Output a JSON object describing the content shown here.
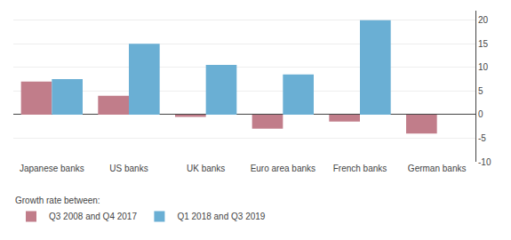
{
  "chart_data": {
    "type": "bar",
    "categories": [
      "Japanese banks",
      "US banks",
      "UK banks",
      "Euro area banks",
      "French banks",
      "German banks"
    ],
    "series": [
      {
        "name": "Q3 2008 and Q4 2017",
        "color": "#c17d8a",
        "values": [
          7.0,
          4.0,
          -0.5,
          -3.0,
          -1.5,
          -4.0
        ]
      },
      {
        "name": "Q1 2018 and Q3 2019",
        "color": "#6aafd4",
        "values": [
          7.5,
          15.0,
          10.5,
          8.5,
          20.0,
          0.0
        ]
      }
    ],
    "legend_title": "Growth rate between:",
    "legend": "bottom",
    "ylim": [
      -10,
      22
    ],
    "yticks": [
      -10,
      -5,
      0,
      5,
      10,
      15,
      20
    ],
    "grid": true
  }
}
